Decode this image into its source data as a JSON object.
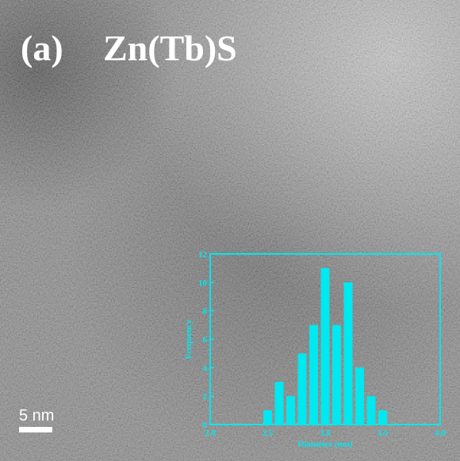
{
  "figure": {
    "panel_label": "(a)",
    "title": "Zn(Tb)S",
    "scale_bar": "5 nm"
  },
  "chart_data": {
    "type": "histogram",
    "x_label": "Diameter (nm)",
    "y_label": "Frequency",
    "bins": [
      2.45,
      2.55,
      2.65,
      2.75,
      2.85,
      2.95,
      3.05,
      3.15,
      3.25,
      3.35,
      3.45,
      3.55
    ],
    "values": [
      1,
      3,
      2,
      5,
      7,
      11,
      7,
      10,
      4,
      2,
      1
    ],
    "color": "#00e8f0",
    "xlim": [
      2,
      4
    ],
    "xticks": [
      {
        "value": 2,
        "label": "2.0"
      },
      {
        "value": 2.5,
        "label": "2.5"
      },
      {
        "value": 3,
        "label": "3.0"
      },
      {
        "value": 3.5,
        "label": "3.5"
      },
      {
        "value": 4,
        "label": "4.0"
      }
    ],
    "ylim": [
      0,
      12
    ],
    "yticks": [
      0,
      2,
      4,
      6,
      8,
      10,
      12
    ]
  }
}
